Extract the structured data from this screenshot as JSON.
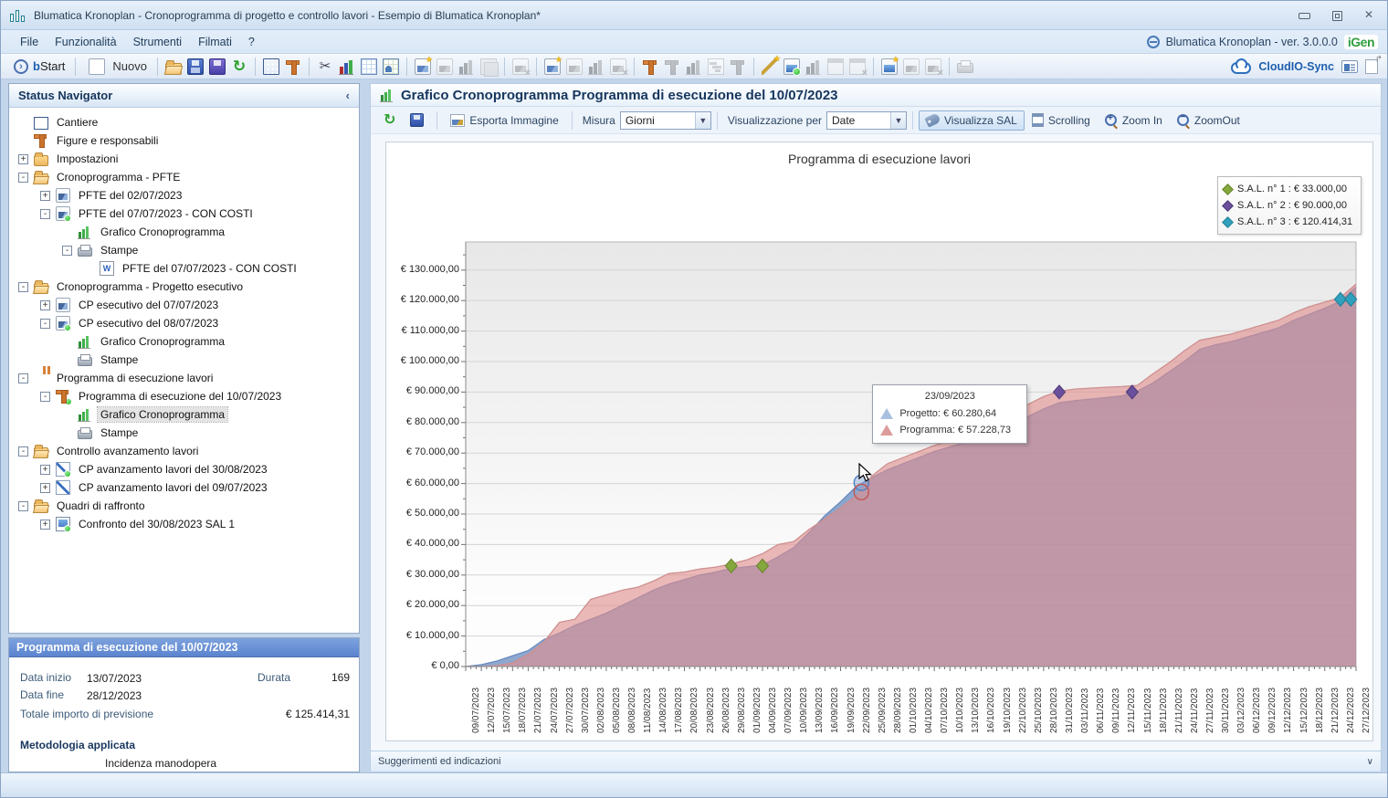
{
  "window": {
    "title": "Blumatica Kronoplan - Cronoprogramma di progetto e controllo lavori - Esempio di Blumatica Kronoplan*"
  },
  "menu": {
    "items": [
      "File",
      "Funzionalità",
      "Strumenti",
      "Filmati",
      "?"
    ],
    "version": "Blumatica Kronoplan - ver. 3.0.0.0",
    "logo": "iGen"
  },
  "toolbar": {
    "bstart_label": "bStart",
    "nuovo_label": "Nuovo",
    "cloud_label": "CloudIO-Sync",
    "groups": [
      [
        {
          "n": "folder-open-icon",
          "c": "i-folder-open"
        },
        {
          "n": "save-icon",
          "c": "i-save"
        },
        {
          "n": "save-multi-icon",
          "c": "i-save2"
        },
        {
          "n": "refresh-icon",
          "c": "i-refresh"
        }
      ],
      [
        {
          "n": "building-icon",
          "c": "i-building"
        },
        {
          "n": "crane-icon",
          "c": "i-crane"
        }
      ],
      [
        {
          "n": "tools-icon",
          "c": "i-tools"
        },
        {
          "n": "bar-chart-icon",
          "c": "i-chart"
        },
        {
          "n": "table-icon",
          "c": "i-table"
        },
        {
          "n": "people-table-icon",
          "c": "i-people"
        }
      ],
      [
        {
          "n": "image-star-icon",
          "c": "i-img",
          "b": "star"
        },
        {
          "n": "image-icon",
          "c": "i-img",
          "g": 1
        },
        {
          "n": "chart-icon",
          "c": "i-chart",
          "g": 1
        },
        {
          "n": "layers-icon",
          "c": "i-layers",
          "g": 1
        }
      ],
      [
        {
          "n": "image-x-icon",
          "c": "i-img",
          "g": 1,
          "b": "x"
        }
      ],
      [
        {
          "n": "image-star-icon",
          "c": "i-img",
          "b": "star"
        },
        {
          "n": "image-icon",
          "c": "i-img",
          "g": 1
        },
        {
          "n": "chart-icon",
          "c": "i-chart",
          "g": 1
        },
        {
          "n": "image-x-icon",
          "c": "i-img",
          "g": 1,
          "b": "x"
        }
      ],
      [
        {
          "n": "crane-star-icon",
          "c": "i-crane",
          "b": "star"
        },
        {
          "n": "crane-icon",
          "c": "i-crane",
          "g": 1
        },
        {
          "n": "chart-icon",
          "c": "i-chart",
          "g": 1
        },
        {
          "n": "gantt-icon",
          "c": "i-gantt",
          "g": 1
        },
        {
          "n": "crane-x-icon",
          "c": "i-crane",
          "g": 1,
          "b": "x"
        }
      ],
      [
        {
          "n": "wand-star-icon",
          "c": "i-wand",
          "b": "star"
        },
        {
          "n": "chart-dot-icon",
          "c": "i-img2",
          "b": "dot"
        },
        {
          "n": "chart-icon",
          "c": "i-chart",
          "g": 1
        },
        {
          "n": "window-icon",
          "c": "i-window",
          "g": 1
        },
        {
          "n": "window-x-icon",
          "c": "i-window",
          "g": 1,
          "b": "x"
        }
      ],
      [
        {
          "n": "image-blue-star-icon",
          "c": "i-img2",
          "b": "star"
        },
        {
          "n": "image-icon",
          "c": "i-img",
          "g": 1
        },
        {
          "n": "image-x-icon",
          "c": "i-img",
          "g": 1,
          "b": "x"
        }
      ],
      [
        {
          "n": "printer-share-icon",
          "c": "i-printer",
          "g": 1
        }
      ]
    ]
  },
  "sidebar": {
    "header": "Status Navigator",
    "collapse_glyph": "‹",
    "tree": [
      {
        "indent": 0,
        "exp": null,
        "icon": "building",
        "label": "Cantiere"
      },
      {
        "indent": 0,
        "exp": null,
        "icon": "crane",
        "label": "Figure e responsabili"
      },
      {
        "indent": 0,
        "exp": "+",
        "icon": "folder",
        "label": "Impostazioni"
      },
      {
        "indent": 0,
        "exp": "-",
        "icon": "folder-open",
        "label": "Cronoprogramma - PFTE"
      },
      {
        "indent": 1,
        "exp": "+",
        "icon": "chart-img",
        "label": "PFTE  del 02/07/2023"
      },
      {
        "indent": 1,
        "exp": "-",
        "icon": "chart-img",
        "dot": true,
        "label": "PFTE  del 07/07/2023 - CON COSTI"
      },
      {
        "indent": 2,
        "exp": null,
        "icon": "bar-chart",
        "label": "Grafico Cronoprogramma"
      },
      {
        "indent": 2,
        "exp": "-",
        "icon": "printer",
        "label": "Stampe"
      },
      {
        "indent": 3,
        "exp": null,
        "icon": "word-doc",
        "label": "PFTE  del 07/07/2023 - CON COSTI"
      },
      {
        "indent": 0,
        "exp": "-",
        "icon": "folder-open",
        "label": "Cronoprogramma - Progetto esecutivo"
      },
      {
        "indent": 1,
        "exp": "+",
        "icon": "chart-img",
        "label": "CP esecutivo del 07/07/2023"
      },
      {
        "indent": 1,
        "exp": "-",
        "icon": "chart-img",
        "dot": true,
        "label": "CP esecutivo del 08/07/2023"
      },
      {
        "indent": 2,
        "exp": null,
        "icon": "bar-chart",
        "label": "Grafico Cronoprogramma"
      },
      {
        "indent": 2,
        "exp": null,
        "icon": "printer",
        "label": "Stampe"
      },
      {
        "indent": 0,
        "exp": "-",
        "icon": "folder-crane",
        "label": "Programma di esecuzione lavori"
      },
      {
        "indent": 1,
        "exp": "-",
        "icon": "crane",
        "dot": true,
        "label": "Programma di esecuzione del 10/07/2023"
      },
      {
        "indent": 2,
        "exp": null,
        "icon": "bar-chart",
        "selected": true,
        "label": "Grafico Cronoprogramma"
      },
      {
        "indent": 2,
        "exp": null,
        "icon": "printer",
        "label": "Stampe"
      },
      {
        "indent": 0,
        "exp": "-",
        "icon": "folder-open",
        "label": "Controllo avanzamento lavori"
      },
      {
        "indent": 1,
        "exp": "+",
        "icon": "line-chart",
        "dot": true,
        "label": "CP avanzamento lavori del 30/08/2023"
      },
      {
        "indent": 1,
        "exp": "+",
        "icon": "line-chart",
        "label": "CP avanzamento lavori del 09/07/2023"
      },
      {
        "indent": 0,
        "exp": "-",
        "icon": "folder-open",
        "label": "Quadri di raffronto"
      },
      {
        "indent": 1,
        "exp": "+",
        "icon": "screen",
        "dot": true,
        "label": "Confronto del 30/08/2023 SAL 1"
      }
    ],
    "details": {
      "header": "Programma di esecuzione del 10/07/2023",
      "data_inizio_label": "Data inizio",
      "data_inizio": "13/07/2023",
      "durata_label": "Durata",
      "durata": "169",
      "data_fine_label": "Data fine",
      "data_fine": "28/12/2023",
      "totale_label": "Totale importo di previsione",
      "totale": "€ 125.414,31",
      "metodologia_label": "Metodologia applicata",
      "metodologia_value": "Incidenza manodopera"
    }
  },
  "chartpanel": {
    "title": "Grafico Cronoprogramma Programma di esecuzione del 10/07/2023",
    "toolbar": {
      "esporta": "Esporta Immagine",
      "misura_label": "Misura",
      "misura_value": "Giorni",
      "visual_label": "Visualizzazione per",
      "visual_value": "Date",
      "sal": "Visualizza SAL",
      "scrolling": "Scrolling",
      "zoomin": "Zoom In",
      "zoomout": "ZoomOut"
    },
    "suggerimenti": "Suggerimenti ed indicazioni",
    "chevron": "∨"
  },
  "chart_data": {
    "type": "area",
    "title": "Programma di esecuzione lavori",
    "ylabel": "",
    "xlabel": "",
    "ylim": [
      0,
      139000
    ],
    "ytick_labels": [
      "€ 130.000,00",
      "€ 120.000,00",
      "€ 110.000,00",
      "€ 100.000,00",
      "€ 90.000,00",
      "€ 80.000,00",
      "€ 70.000,00",
      "€ 60.000,00",
      "€ 50.000,00",
      "€ 40.000,00",
      "€ 30.000,00",
      "€ 20.000,00",
      "€ 10.000,00",
      "€ 0,00"
    ],
    "ytick_values": [
      130000,
      120000,
      110000,
      100000,
      90000,
      80000,
      70000,
      60000,
      50000,
      40000,
      30000,
      20000,
      10000,
      0
    ],
    "x": [
      "09/07/2023",
      "12/07/2023",
      "15/07/2023",
      "18/07/2023",
      "21/07/2023",
      "24/07/2023",
      "27/07/2023",
      "30/07/2023",
      "02/08/2023",
      "05/08/2023",
      "08/08/2023",
      "11/08/2023",
      "14/08/2023",
      "17/08/2023",
      "20/08/2023",
      "23/08/2023",
      "26/08/2023",
      "29/08/2023",
      "01/09/2023",
      "04/09/2023",
      "07/09/2023",
      "10/09/2023",
      "13/09/2023",
      "16/09/2023",
      "19/09/2023",
      "22/09/2023",
      "25/09/2023",
      "28/09/2023",
      "01/10/2023",
      "04/10/2023",
      "07/10/2023",
      "10/10/2023",
      "13/10/2023",
      "16/10/2023",
      "19/10/2023",
      "22/10/2023",
      "25/10/2023",
      "28/10/2023",
      "31/10/2023",
      "03/11/2023",
      "06/11/2023",
      "09/11/2023",
      "12/11/2023",
      "15/11/2023",
      "18/11/2023",
      "21/11/2023",
      "24/11/2023",
      "27/11/2023",
      "30/11/2023",
      "03/12/2023",
      "06/12/2023",
      "09/12/2023",
      "12/12/2023",
      "15/12/2023",
      "18/12/2023",
      "21/12/2023",
      "24/12/2023",
      "27/12/2023"
    ],
    "series": [
      {
        "name": "Progetto",
        "fill": "rgba(98,135,190,0.72)",
        "line": "#6889bd",
        "values": [
          0,
          600,
          1800,
          3500,
          5200,
          8800,
          11000,
          13500,
          15500,
          17500,
          20000,
          22500,
          25000,
          27000,
          28500,
          30000,
          31000,
          32200,
          32700,
          33300,
          36000,
          39000,
          44000,
          49500,
          54000,
          59000,
          62000,
          64500,
          66500,
          68500,
          70500,
          72000,
          73500,
          75500,
          77500,
          79500,
          82000,
          84500,
          86500,
          87200,
          87700,
          88200,
          88700,
          90300,
          93000,
          96500,
          100000,
          104000,
          105500,
          106500,
          108000,
          109500,
          111000,
          113500,
          115500,
          117500,
          119800,
          124500
        ]
      },
      {
        "name": "Programma",
        "fill": "rgba(224,142,142,0.62)",
        "line": "#cf8f8f",
        "values": [
          0,
          0,
          300,
          1200,
          4000,
          8000,
          14500,
          15500,
          22000,
          23500,
          25000,
          26000,
          28000,
          30500,
          31000,
          32000,
          32600,
          33600,
          35000,
          37000,
          40000,
          41000,
          45000,
          48500,
          52000,
          56000,
          62500,
          66500,
          68500,
          70500,
          72500,
          74000,
          76000,
          78000,
          80500,
          83000,
          86000,
          88500,
          90300,
          91000,
          91300,
          91600,
          91800,
          92200,
          96000,
          99500,
          103500,
          107000,
          108000,
          109000,
          110500,
          112000,
          113500,
          116000,
          118000,
          119500,
          121000,
          125414.31
        ]
      }
    ],
    "sal_markers": [
      {
        "legend_label": "S.A.L. n° 1 : € 33.000,00",
        "value": 33000,
        "fill": "#85a83e",
        "stroke": "#66832a",
        "dates": [
          "29/08/2023",
          "04/09/2023"
        ]
      },
      {
        "legend_label": "S.A.L. n° 2 : € 90.000,00",
        "value": 90000,
        "fill": "#6a4f9c",
        "stroke": "#4e3a78",
        "dates": [
          "31/10/2023",
          "14/11/2023"
        ]
      },
      {
        "legend_label": "S.A.L. n° 3 : € 120.414,31",
        "value": 120414.31,
        "fill": "#30a0bc",
        "stroke": "#1f7f98",
        "dates": [
          "24/12/2023",
          "26/12/2023"
        ]
      }
    ],
    "tooltip": {
      "date": "23/09/2023",
      "rows": [
        {
          "name": "Progetto",
          "display": "Progetto: € 60.280,64",
          "value": 60280.64,
          "color": "#a9c0e0"
        },
        {
          "name": "Programma",
          "display": "Programma: € 57.228,73",
          "value": 57228.73,
          "color": "#dd9c9c"
        }
      ]
    },
    "legend_position": "top-right",
    "grid": true
  }
}
